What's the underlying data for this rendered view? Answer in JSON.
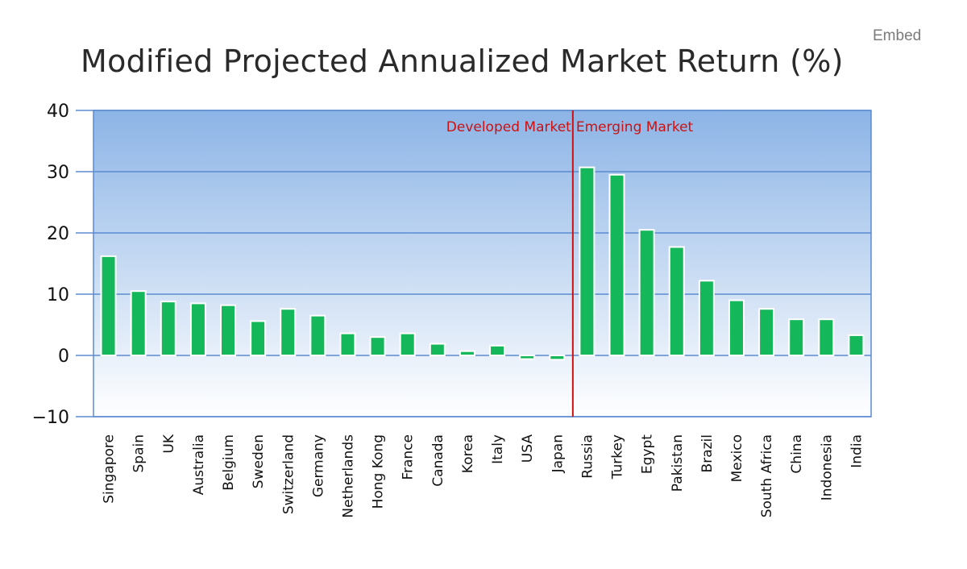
{
  "embed_label": "Embed",
  "chart_data": {
    "type": "bar",
    "title": "Modified Projected Annualized Market Return (%)",
    "xlabel": "",
    "ylabel": "",
    "ylim": [
      -10,
      40
    ],
    "yticks": [
      40,
      30,
      20,
      10,
      0,
      -10
    ],
    "grid": true,
    "categories": [
      "Singapore",
      "Spain",
      "UK",
      "Australia",
      "Belgium",
      "Sweden",
      "Switzerland",
      "Germany",
      "Netherlands",
      "Hong Kong",
      "France",
      "Canada",
      "Korea",
      "Italy",
      "USA",
      "Japan",
      "Russia",
      "Turkey",
      "Egypt",
      "Pakistan",
      "Brazil",
      "Mexico",
      "South Africa",
      "China",
      "Indonesia",
      "India"
    ],
    "values": [
      16.2,
      10.5,
      8.8,
      8.5,
      8.2,
      5.6,
      7.6,
      6.5,
      3.6,
      3.0,
      3.6,
      1.9,
      0.7,
      1.6,
      -0.6,
      -0.7,
      30.7,
      29.5,
      20.5,
      17.7,
      12.2,
      9.0,
      7.6,
      5.9,
      5.9,
      3.3
    ],
    "bar_color": "#14b85a",
    "divider": {
      "after_category": "Japan",
      "color": "#cc1111",
      "left_label": "Developed Market",
      "right_label": "Emerging Market"
    },
    "background_gradient": [
      "#8cb4e6",
      "#ffffff"
    ],
    "grid_color": "#5b8ad0"
  }
}
